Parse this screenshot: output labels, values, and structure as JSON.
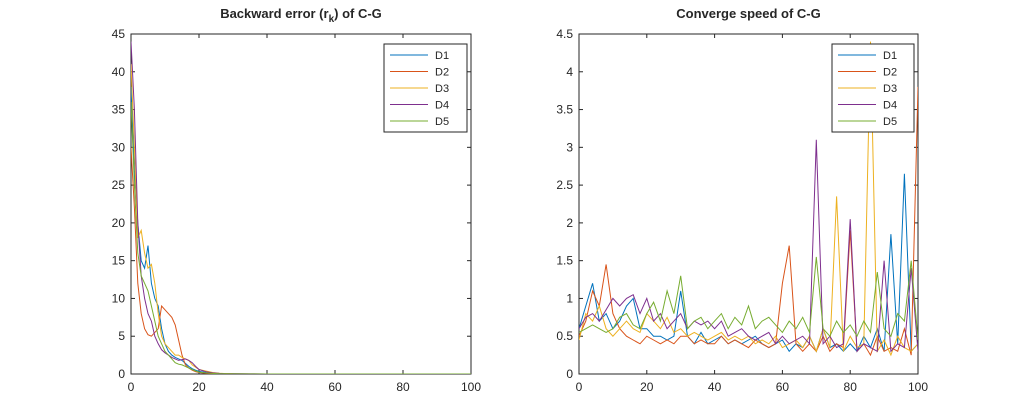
{
  "chart_data": [
    {
      "type": "line",
      "title_main": "Backward error (r",
      "title_sub": "k",
      "title_tail": ") of C-G",
      "xlabel": "",
      "ylabel": "",
      "xlim": [
        0,
        100
      ],
      "ylim": [
        0,
        45
      ],
      "xticks": [
        0,
        20,
        40,
        60,
        80,
        100
      ],
      "yticks": [
        0,
        5,
        10,
        15,
        20,
        25,
        30,
        35,
        40,
        45
      ],
      "grid": false,
      "legend_position": "top-right",
      "colors": [
        "#0072BD",
        "#D95319",
        "#EDB120",
        "#7E2F8E",
        "#77AC30"
      ],
      "series": [
        {
          "name": "D1",
          "x": [
            0,
            1,
            2,
            3,
            4,
            5,
            6,
            7,
            8,
            9,
            10,
            11,
            12,
            13,
            14,
            15,
            16,
            17,
            18,
            19,
            20,
            22,
            24,
            26,
            28,
            30,
            35,
            40,
            50,
            60,
            70,
            80,
            90,
            100
          ],
          "y": [
            38,
            27,
            20,
            15,
            14,
            17,
            12,
            10,
            9,
            6,
            4,
            3,
            2.5,
            2.2,
            2.0,
            1.8,
            1.4,
            1.0,
            0.7,
            0.5,
            0.35,
            0.2,
            0.1,
            0.06,
            0.04,
            0.02,
            0.01,
            0,
            0,
            0,
            0,
            0,
            0,
            0
          ]
        },
        {
          "name": "D2",
          "x": [
            0,
            1,
            2,
            3,
            4,
            5,
            6,
            7,
            8,
            9,
            10,
            11,
            12,
            13,
            14,
            15,
            16,
            17,
            18,
            19,
            20,
            22,
            24,
            26,
            28,
            30,
            35,
            40,
            50,
            60,
            70,
            80,
            90,
            100
          ],
          "y": [
            30,
            22,
            12,
            8,
            6,
            5.2,
            5,
            5.5,
            6,
            9,
            8.5,
            8,
            7.5,
            6.5,
            4.5,
            2.5,
            1.2,
            0.8,
            0.5,
            0.3,
            0.2,
            0.1,
            0.05,
            0.03,
            0.02,
            0.01,
            0,
            0,
            0,
            0,
            0,
            0,
            0,
            0
          ]
        },
        {
          "name": "D3",
          "x": [
            0,
            1,
            2,
            3,
            4,
            5,
            6,
            7,
            8,
            9,
            10,
            11,
            12,
            13,
            14,
            15,
            16,
            17,
            18,
            19,
            20,
            22,
            24,
            26,
            28,
            30,
            35,
            40,
            50,
            60,
            70,
            80,
            90,
            100
          ],
          "y": [
            41,
            30,
            18,
            19,
            16,
            14,
            14.5,
            12,
            8,
            5,
            4,
            3.5,
            3,
            2.5,
            2.5,
            2.2,
            2,
            1.8,
            1.2,
            0.9,
            0.6,
            0.4,
            0.2,
            0.1,
            0.05,
            0.03,
            0.01,
            0,
            0,
            0,
            0,
            0,
            0,
            0
          ]
        },
        {
          "name": "D4",
          "x": [
            0,
            1,
            2,
            3,
            4,
            5,
            6,
            7,
            8,
            9,
            10,
            11,
            12,
            13,
            14,
            15,
            16,
            17,
            18,
            19,
            20,
            22,
            24,
            26,
            28,
            30,
            35,
            40,
            50,
            60,
            70,
            80,
            90,
            100
          ],
          "y": [
            44,
            35,
            20,
            13,
            10,
            8,
            7,
            5,
            4,
            3.2,
            2.8,
            2.5,
            2.2,
            2,
            1.8,
            1.9,
            2.0,
            1.8,
            1.5,
            1.0,
            0.6,
            0.3,
            0.15,
            0.08,
            0.04,
            0.02,
            0.01,
            0,
            0,
            0,
            0,
            0,
            0,
            0
          ]
        },
        {
          "name": "D5",
          "x": [
            0,
            1,
            2,
            3,
            4,
            5,
            6,
            7,
            8,
            9,
            10,
            11,
            12,
            13,
            14,
            15,
            16,
            17,
            18,
            19,
            20,
            22,
            24,
            26,
            28,
            30,
            35,
            40,
            50,
            60,
            70,
            80,
            90,
            100
          ],
          "y": [
            36,
            25,
            16,
            13,
            12,
            11,
            9,
            7,
            5,
            4,
            3,
            2.5,
            2,
            1.5,
            1.3,
            1.2,
            1.0,
            0.8,
            0.6,
            0.4,
            0.25,
            0.15,
            0.08,
            0.04,
            0.02,
            0.01,
            0,
            0,
            0,
            0,
            0,
            0,
            0,
            0
          ]
        }
      ]
    },
    {
      "type": "line",
      "title_main": "Converge speed of C-G",
      "title_sub": "",
      "title_tail": "",
      "xlabel": "",
      "ylabel": "",
      "xlim": [
        0,
        100
      ],
      "ylim": [
        0,
        4.5
      ],
      "xticks": [
        0,
        20,
        40,
        60,
        80,
        100
      ],
      "yticks": [
        0,
        0.5,
        1,
        1.5,
        2,
        2.5,
        3,
        3.5,
        4,
        4.5
      ],
      "grid": false,
      "legend_position": "top-right",
      "colors": [
        "#0072BD",
        "#D95319",
        "#EDB120",
        "#7E2F8E",
        "#77AC30"
      ],
      "series": [
        {
          "name": "D1",
          "x": [
            0,
            2,
            4,
            6,
            8,
            10,
            12,
            14,
            16,
            18,
            20,
            22,
            24,
            26,
            28,
            30,
            32,
            34,
            36,
            38,
            40,
            42,
            44,
            46,
            48,
            50,
            52,
            54,
            56,
            58,
            60,
            62,
            64,
            66,
            68,
            70,
            72,
            74,
            76,
            78,
            80,
            82,
            84,
            86,
            88,
            90,
            92,
            94,
            96,
            98,
            100
          ],
          "y": [
            0.6,
            0.9,
            1.2,
            0.7,
            0.8,
            0.6,
            0.7,
            0.9,
            1.0,
            0.6,
            0.6,
            0.5,
            0.5,
            0.45,
            0.5,
            1.1,
            0.5,
            0.4,
            0.55,
            0.4,
            0.45,
            0.5,
            0.4,
            0.45,
            0.4,
            0.45,
            0.5,
            0.4,
            0.35,
            0.4,
            0.45,
            0.3,
            0.4,
            0.35,
            0.5,
            0.3,
            0.6,
            0.35,
            0.4,
            0.3,
            0.4,
            0.3,
            0.5,
            0.35,
            0.6,
            0.3,
            1.85,
            0.4,
            2.65,
            0.3,
            0.4
          ]
        },
        {
          "name": "D2",
          "x": [
            0,
            2,
            4,
            6,
            8,
            10,
            12,
            14,
            16,
            18,
            20,
            22,
            24,
            26,
            28,
            30,
            32,
            34,
            36,
            38,
            40,
            42,
            44,
            46,
            48,
            50,
            52,
            54,
            56,
            58,
            60,
            62,
            64,
            66,
            68,
            70,
            72,
            74,
            76,
            78,
            80,
            82,
            84,
            86,
            88,
            90,
            92,
            94,
            96,
            98,
            100
          ],
          "y": [
            0.5,
            0.7,
            1.1,
            0.9,
            1.45,
            0.8,
            0.6,
            0.5,
            0.45,
            0.4,
            0.5,
            0.45,
            0.4,
            0.45,
            0.4,
            0.5,
            0.5,
            0.4,
            0.45,
            0.4,
            0.4,
            0.5,
            0.4,
            0.45,
            0.4,
            0.35,
            0.45,
            0.4,
            0.35,
            0.4,
            1.2,
            1.7,
            0.4,
            0.3,
            0.4,
            0.3,
            0.5,
            0.3,
            0.4,
            0.35,
            1.9,
            0.3,
            0.4,
            0.25,
            0.5,
            0.3,
            0.35,
            0.3,
            0.6,
            0.25,
            3.8
          ]
        },
        {
          "name": "D3",
          "x": [
            0,
            2,
            4,
            6,
            8,
            10,
            12,
            14,
            16,
            18,
            20,
            22,
            24,
            26,
            28,
            30,
            32,
            34,
            36,
            38,
            40,
            42,
            44,
            46,
            48,
            50,
            52,
            54,
            56,
            58,
            60,
            62,
            64,
            66,
            68,
            70,
            72,
            74,
            76,
            78,
            80,
            82,
            84,
            86,
            88,
            90,
            92,
            94,
            96,
            98,
            100
          ],
          "y": [
            0.45,
            0.8,
            0.7,
            0.9,
            0.6,
            0.5,
            0.6,
            0.7,
            0.6,
            0.55,
            0.8,
            0.7,
            0.6,
            0.75,
            0.55,
            0.6,
            0.5,
            0.55,
            0.5,
            0.45,
            0.5,
            0.55,
            0.45,
            0.5,
            0.45,
            0.5,
            0.4,
            0.45,
            0.4,
            0.5,
            0.35,
            0.4,
            0.45,
            0.35,
            0.5,
            0.3,
            0.6,
            0.35,
            2.35,
            0.3,
            0.5,
            0.35,
            0.4,
            4.4,
            0.3,
            0.45,
            0.25,
            0.5,
            0.35,
            0.3,
            0.4
          ]
        },
        {
          "name": "D4",
          "x": [
            0,
            2,
            4,
            6,
            8,
            10,
            12,
            14,
            16,
            18,
            20,
            22,
            24,
            26,
            28,
            30,
            32,
            34,
            36,
            38,
            40,
            42,
            44,
            46,
            48,
            50,
            52,
            54,
            56,
            58,
            60,
            62,
            64,
            66,
            68,
            70,
            72,
            74,
            76,
            78,
            80,
            82,
            84,
            86,
            88,
            90,
            92,
            94,
            96,
            98,
            100
          ],
          "y": [
            0.6,
            0.75,
            0.8,
            0.7,
            0.85,
            1.0,
            0.9,
            1.0,
            1.05,
            0.8,
            1.0,
            0.7,
            0.8,
            0.6,
            0.7,
            0.8,
            0.6,
            0.7,
            0.65,
            0.7,
            0.6,
            0.7,
            0.5,
            0.55,
            0.6,
            0.5,
            0.45,
            0.5,
            0.55,
            0.4,
            0.5,
            0.4,
            0.45,
            0.5,
            0.4,
            3.1,
            0.4,
            0.5,
            0.35,
            0.4,
            2.05,
            0.3,
            0.4,
            0.35,
            0.3,
            1.5,
            0.3,
            0.4,
            0.35,
            1.4,
            0.3
          ]
        },
        {
          "name": "D5",
          "x": [
            0,
            2,
            4,
            6,
            8,
            10,
            12,
            14,
            16,
            18,
            20,
            22,
            24,
            26,
            28,
            30,
            32,
            34,
            36,
            38,
            40,
            42,
            44,
            46,
            48,
            50,
            52,
            54,
            56,
            58,
            60,
            62,
            64,
            66,
            68,
            70,
            72,
            74,
            76,
            78,
            80,
            82,
            84,
            86,
            88,
            90,
            92,
            94,
            96,
            98,
            100
          ],
          "y": [
            0.55,
            0.6,
            0.65,
            0.6,
            0.55,
            0.6,
            0.75,
            0.8,
            0.65,
            0.6,
            0.8,
            0.95,
            0.7,
            1.1,
            0.8,
            1.3,
            0.6,
            0.7,
            0.75,
            0.6,
            0.7,
            0.8,
            0.6,
            0.75,
            0.65,
            0.9,
            0.6,
            0.7,
            0.75,
            0.65,
            0.55,
            0.7,
            0.6,
            0.75,
            0.55,
            1.55,
            0.6,
            0.5,
            0.7,
            0.55,
            0.65,
            0.5,
            0.7,
            0.55,
            1.35,
            0.6,
            0.5,
            0.8,
            0.7,
            1.5,
            0.45
          ]
        }
      ]
    }
  ]
}
